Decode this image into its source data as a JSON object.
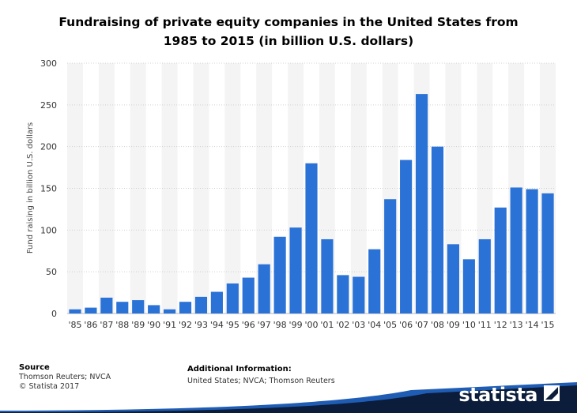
{
  "title_line1": "Fundraising of private equity companies in the United States from",
  "title_line2": "1985 to 2015 (in billion U.S. dollars)",
  "chart_data": {
    "type": "bar",
    "title": "Fundraising of private equity companies in the United States from 1985 to 2015 (in billion U.S. dollars)",
    "xlabel": "",
    "ylabel": "Fund raising in billion U.S. dollars",
    "ylim": [
      0,
      300
    ],
    "yticks": [
      0,
      50,
      100,
      150,
      200,
      250,
      300
    ],
    "categories": [
      "'85",
      "'86",
      "'87",
      "'88",
      "'89",
      "'90",
      "'91",
      "'92",
      "'93",
      "'94",
      "'95",
      "'96",
      "'97",
      "'98",
      "'99",
      "'00",
      "'01",
      "'02",
      "'03",
      "'04",
      "'05",
      "'06",
      "'07",
      "'08",
      "'09",
      "'10",
      "'11",
      "'12",
      "'13",
      "'14",
      "'15"
    ],
    "values": [
      5,
      7,
      19,
      14,
      16,
      10,
      5,
      14,
      20,
      26,
      36,
      43,
      59,
      92,
      103,
      180,
      89,
      46,
      44,
      77,
      137,
      184,
      263,
      200,
      83,
      65,
      89,
      127,
      151,
      149,
      144
    ],
    "bar_color": "#2a72d6",
    "grid": true
  },
  "footer": {
    "source_heading": "Source",
    "source_line1": "Thomson Reuters; NVCA",
    "source_line2": "© Statista 2017",
    "info_heading": "Additional Information:",
    "info_text": "United States; NVCA; Thomson Reuters"
  },
  "brand": {
    "name": "statista",
    "dark_color": "#0b1d3a",
    "accent_color": "#1f5db5"
  }
}
